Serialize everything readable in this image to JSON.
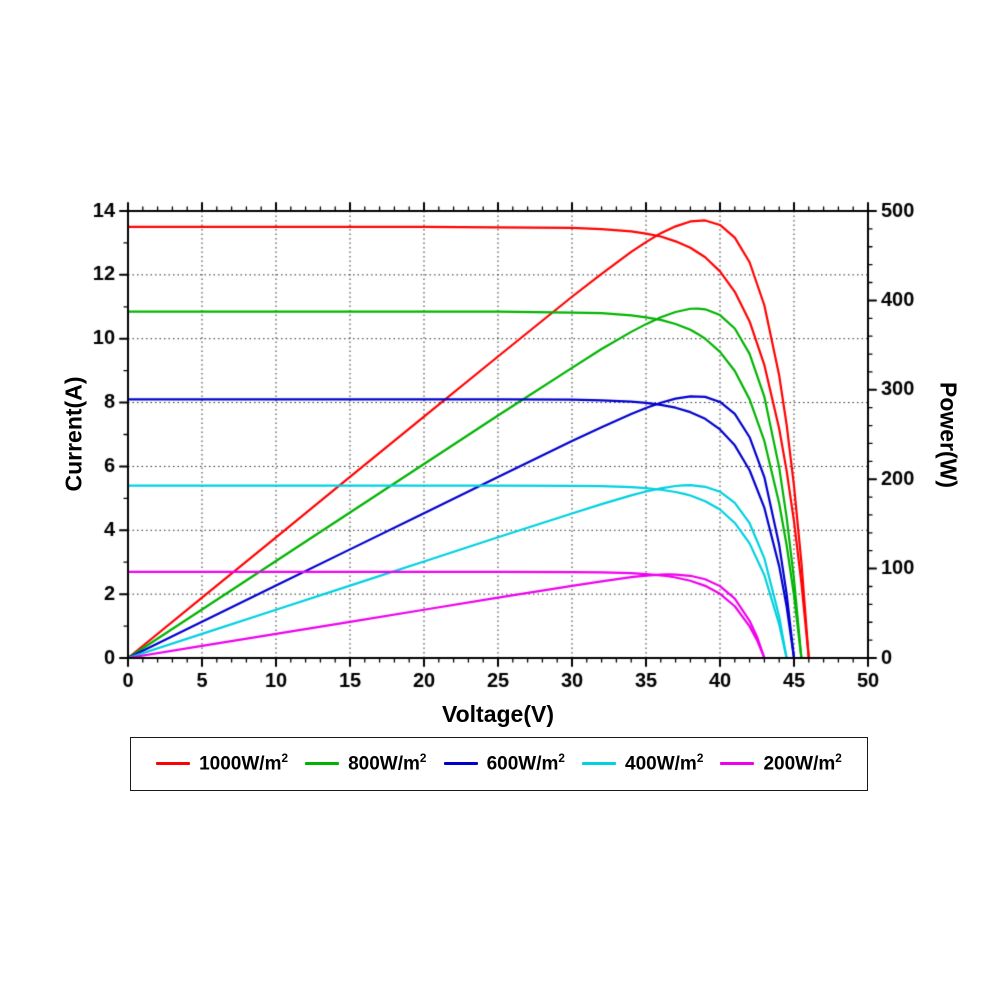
{
  "page": {
    "background": "#ffffff"
  },
  "chart_data": {
    "type": "line",
    "title": "",
    "xlabel": "Voltage(V)",
    "ylabel_left": "Current(A)",
    "ylabel_right": "Power(W)",
    "x_range": [
      0,
      50
    ],
    "x_ticks": [
      0,
      5,
      10,
      15,
      20,
      25,
      30,
      35,
      40,
      45,
      50
    ],
    "y_left_range": [
      0,
      14
    ],
    "y_left_ticks": [
      0,
      2,
      4,
      6,
      8,
      10,
      12,
      14
    ],
    "y_right_range": [
      0,
      500
    ],
    "y_right_ticks": [
      0,
      100,
      200,
      300,
      400,
      500
    ],
    "grid": "dotted",
    "legend_position": "bottom",
    "curve_relation": "Each irradiance series shows an I-V curve on the left axis and a P-V curve (P = V x I) on the right axis",
    "series": [
      {
        "name": "1000W/m²",
        "label_base": "1000W/m",
        "label_exp": "2",
        "color": "#ff0000",
        "isc_A": 13.5,
        "voc_V": 46.0,
        "vmp_V": 39.0,
        "imp_A": 12.55,
        "pmax_W": 490,
        "iv_points": [
          [
            0,
            13.5
          ],
          [
            5,
            13.5
          ],
          [
            10,
            13.5
          ],
          [
            15,
            13.5
          ],
          [
            20,
            13.5
          ],
          [
            25,
            13.49
          ],
          [
            30,
            13.47
          ],
          [
            32,
            13.43
          ],
          [
            34,
            13.36
          ],
          [
            35,
            13.29
          ],
          [
            36,
            13.2
          ],
          [
            37,
            13.05
          ],
          [
            38,
            12.85
          ],
          [
            39,
            12.55
          ],
          [
            40,
            12.11
          ],
          [
            41,
            11.47
          ],
          [
            42,
            10.54
          ],
          [
            43,
            9.17
          ],
          [
            44,
            7.18
          ],
          [
            44.5,
            5.87
          ],
          [
            45,
            4.28
          ],
          [
            45.5,
            2.35
          ],
          [
            46,
            0
          ]
        ]
      },
      {
        "name": "800W/m²",
        "label_base": "800W/m",
        "label_exp": "2",
        "color": "#00b300",
        "isc_A": 10.85,
        "voc_V": 45.5,
        "vmp_V": 38.5,
        "imp_A": 10.15,
        "pmax_W": 391,
        "iv_points": [
          [
            0,
            10.85
          ],
          [
            5,
            10.85
          ],
          [
            10,
            10.85
          ],
          [
            15,
            10.85
          ],
          [
            20,
            10.85
          ],
          [
            25,
            10.85
          ],
          [
            30,
            10.82
          ],
          [
            32,
            10.8
          ],
          [
            34,
            10.73
          ],
          [
            35,
            10.67
          ],
          [
            36,
            10.59
          ],
          [
            37,
            10.46
          ],
          [
            38,
            10.28
          ],
          [
            38.5,
            10.15
          ],
          [
            39,
            10.0
          ],
          [
            40,
            9.59
          ],
          [
            41,
            8.99
          ],
          [
            42,
            8.1
          ],
          [
            43,
            6.79
          ],
          [
            44,
            4.84
          ],
          [
            44.5,
            3.54
          ],
          [
            45,
            1.96
          ],
          [
            45.5,
            0
          ]
        ]
      },
      {
        "name": "600W/m²",
        "label_base": "600W/m",
        "label_exp": "2",
        "color": "#0000cd",
        "isc_A": 8.1,
        "voc_V": 45.0,
        "vmp_V": 38.0,
        "imp_A": 7.7,
        "pmax_W": 293,
        "iv_points": [
          [
            0,
            8.1
          ],
          [
            5,
            8.1
          ],
          [
            10,
            8.1
          ],
          [
            15,
            8.1
          ],
          [
            20,
            8.1
          ],
          [
            25,
            8.1
          ],
          [
            30,
            8.09
          ],
          [
            32,
            8.07
          ],
          [
            34,
            8.03
          ],
          [
            35,
            7.99
          ],
          [
            36,
            7.93
          ],
          [
            37,
            7.84
          ],
          [
            38,
            7.7
          ],
          [
            39,
            7.49
          ],
          [
            40,
            7.16
          ],
          [
            41,
            6.66
          ],
          [
            42,
            5.88
          ],
          [
            43,
            4.7
          ],
          [
            44,
            2.87
          ],
          [
            44.5,
            1.62
          ],
          [
            45,
            0
          ]
        ]
      },
      {
        "name": "400W/m²",
        "label_base": "400W/m",
        "label_exp": "2",
        "color": "#00d0e0",
        "isc_A": 5.4,
        "voc_V": 44.5,
        "vmp_V": 37.5,
        "imp_A": 5.15,
        "pmax_W": 193,
        "iv_points": [
          [
            0,
            5.4
          ],
          [
            5,
            5.4
          ],
          [
            10,
            5.4
          ],
          [
            15,
            5.4
          ],
          [
            20,
            5.4
          ],
          [
            25,
            5.4
          ],
          [
            30,
            5.39
          ],
          [
            32,
            5.38
          ],
          [
            34,
            5.35
          ],
          [
            35,
            5.32
          ],
          [
            36,
            5.27
          ],
          [
            37,
            5.2
          ],
          [
            37.5,
            5.15
          ],
          [
            38,
            5.09
          ],
          [
            39,
            4.91
          ],
          [
            40,
            4.65
          ],
          [
            41,
            4.23
          ],
          [
            42,
            3.59
          ],
          [
            43,
            2.59
          ],
          [
            44,
            1.05
          ],
          [
            44.5,
            0
          ]
        ]
      },
      {
        "name": "200W/m²",
        "label_base": "200W/m",
        "label_exp": "2",
        "color": "#ee00ee",
        "isc_A": 2.7,
        "voc_V": 43.0,
        "vmp_V": 36.5,
        "imp_A": 2.56,
        "pmax_W": 93,
        "iv_points": [
          [
            0,
            2.7
          ],
          [
            5,
            2.7
          ],
          [
            10,
            2.7
          ],
          [
            15,
            2.7
          ],
          [
            20,
            2.7
          ],
          [
            25,
            2.7
          ],
          [
            30,
            2.69
          ],
          [
            32,
            2.68
          ],
          [
            34,
            2.66
          ],
          [
            35,
            2.63
          ],
          [
            36,
            2.59
          ],
          [
            36.5,
            2.56
          ],
          [
            37,
            2.52
          ],
          [
            38,
            2.42
          ],
          [
            39,
            2.26
          ],
          [
            40,
            2.01
          ],
          [
            41,
            1.62
          ],
          [
            42,
            0.99
          ],
          [
            42.5,
            0.56
          ],
          [
            43,
            0
          ]
        ]
      }
    ]
  }
}
